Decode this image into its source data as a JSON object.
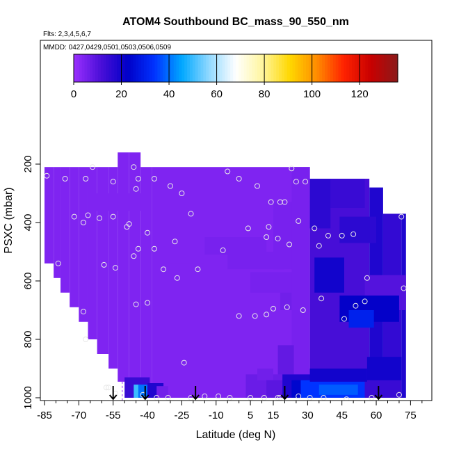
{
  "chart_data": {
    "type": "heatmap",
    "title": "ATOM4 Southbound BC_mass_90_550_nm",
    "flights_label": "Flts: 2,3,4,5,6,7",
    "dates_label": "MMDD: 0427,0429,0501,0503,0506,0509",
    "xlabel": "Latitude (deg N)",
    "ylabel": "PSXC (mbar)",
    "x_ticks": [
      -85,
      -70,
      -55,
      -40,
      -25,
      -10,
      5,
      15,
      30,
      45,
      60,
      75
    ],
    "y_ticks": [
      200,
      400,
      600,
      800,
      1000
    ],
    "xlim": [
      -85,
      84
    ],
    "ylim": [
      1000,
      0
    ],
    "y_reversed": true,
    "colorbar": {
      "range": [
        0,
        136
      ],
      "ticks": [
        0,
        20,
        40,
        60,
        80,
        100,
        120
      ],
      "colors": [
        "#9b30ff",
        "#4b0fd8",
        "#0000c8",
        "#0033ff",
        "#00a8ff",
        "#8fd8ff",
        "#ffffff",
        "#fff59d",
        "#ffd800",
        "#ff8c00",
        "#ff2200",
        "#c80000",
        "#8b1a1a"
      ],
      "orientation": "horizontal",
      "placement": "top"
    },
    "background_value": 4,
    "columns": [
      {
        "lat_range": [
          -85,
          -81
        ],
        "p_range": [
          210,
          540
        ],
        "value": 4
      },
      {
        "lat_range": [
          -81,
          -78
        ],
        "p_range": [
          210,
          590
        ],
        "value": 4
      },
      {
        "lat_range": [
          -78,
          -74
        ],
        "p_range": [
          210,
          640
        ],
        "value": 4
      },
      {
        "lat_range": [
          -74,
          -70
        ],
        "p_range": [
          210,
          690
        ],
        "value": 4
      },
      {
        "lat_range": [
          -70,
          -66
        ],
        "p_range": [
          210,
          740
        ],
        "value": 4
      },
      {
        "lat_range": [
          -66,
          -62
        ],
        "p_range": [
          210,
          800
        ],
        "value": 4
      },
      {
        "lat_range": [
          -62,
          -57
        ],
        "p_range": [
          210,
          850
        ],
        "value": 4
      },
      {
        "lat_range": [
          -57,
          -53
        ],
        "p_range": [
          210,
          900
        ],
        "value": 4
      },
      {
        "lat_range": [
          -53,
          -48
        ],
        "p_range": [
          160,
          945
        ],
        "value": 4
      },
      {
        "lat_range": [
          -48,
          -43
        ],
        "p_range": [
          160,
          1000
        ],
        "value": 4
      },
      {
        "lat_range": [
          -43,
          -38
        ],
        "p_range": [
          210,
          1000
        ],
        "value": 4
      },
      {
        "lat_range": [
          -38,
          28
        ],
        "p_range": [
          210,
          1000
        ],
        "value": 4
      },
      {
        "lat_range": [
          28,
          31
        ],
        "p_range": [
          210,
          1000
        ],
        "value": 5
      },
      {
        "lat_range": [
          31,
          57
        ],
        "p_range": [
          250,
          1000
        ],
        "value": 12
      },
      {
        "lat_range": [
          57,
          63
        ],
        "p_range": [
          280,
          1000
        ],
        "value": 18
      },
      {
        "lat_range": [
          63,
          71
        ],
        "p_range": [
          370,
          1000
        ],
        "value": 15
      },
      {
        "lat_range": [
          71,
          73
        ],
        "p_range": [
          370,
          1000
        ],
        "value": 18
      }
    ],
    "patches": [
      {
        "lat_range": [
          -50,
          -39
        ],
        "p_range": [
          930,
          1000
        ],
        "value": 14
      },
      {
        "lat_range": [
          -46,
          -43
        ],
        "p_range": [
          955,
          1000
        ],
        "value": 50
      },
      {
        "lat_range": [
          -44,
          -40
        ],
        "p_range": [
          955,
          1000
        ],
        "value": 40
      },
      {
        "lat_range": [
          -40,
          -33
        ],
        "p_range": [
          950,
          1000
        ],
        "value": 18
      },
      {
        "lat_range": [
          -36,
          -31
        ],
        "p_range": [
          960,
          1000
        ],
        "value": 6
      },
      {
        "lat_range": [
          3,
          28
        ],
        "p_range": [
          920,
          1000
        ],
        "value": 7
      },
      {
        "lat_range": [
          8,
          15
        ],
        "p_range": [
          900,
          940
        ],
        "value": 6
      },
      {
        "lat_range": [
          12,
          22
        ],
        "p_range": [
          940,
          1000
        ],
        "value": 9
      },
      {
        "lat_range": [
          -15,
          12
        ],
        "p_range": [
          450,
          510
        ],
        "value": 5
      },
      {
        "lat_range": [
          -5,
          20
        ],
        "p_range": [
          500,
          560
        ],
        "value": 5
      },
      {
        "lat_range": [
          5,
          30
        ],
        "p_range": [
          570,
          640
        ],
        "value": 5
      },
      {
        "lat_range": [
          -30,
          -15
        ],
        "p_range": [
          540,
          580
        ],
        "value": 4
      },
      {
        "lat_range": [
          -65,
          -40
        ],
        "p_range": [
          300,
          360
        ],
        "value": 4
      },
      {
        "lat_range": [
          15,
          23
        ],
        "p_range": [
          330,
          560
        ],
        "value": 5
      },
      {
        "lat_range": [
          18,
          27
        ],
        "p_range": [
          640,
          700
        ],
        "value": 6
      },
      {
        "lat_range": [
          23,
          31
        ],
        "p_range": [
          210,
          1000
        ],
        "value": 5
      },
      {
        "lat_range": [
          17,
          24
        ],
        "p_range": [
          820,
          920
        ],
        "value": 8
      },
      {
        "lat_range": [
          31,
          40
        ],
        "p_range": [
          250,
          420
        ],
        "value": 16
      },
      {
        "lat_range": [
          40,
          55
        ],
        "p_range": [
          250,
          350
        ],
        "value": 14
      },
      {
        "lat_range": [
          44,
          60
        ],
        "p_range": [
          380,
          470
        ],
        "value": 16
      },
      {
        "lat_range": [
          33,
          46
        ],
        "p_range": [
          520,
          640
        ],
        "value": 20
      },
      {
        "lat_range": [
          55,
          73
        ],
        "p_range": [
          580,
          700
        ],
        "value": 10
      },
      {
        "lat_range": [
          44,
          70
        ],
        "p_range": [
          650,
          740
        ],
        "value": 22
      },
      {
        "lat_range": [
          48,
          59
        ],
        "p_range": [
          700,
          760
        ],
        "value": 30
      },
      {
        "lat_range": [
          19,
          35
        ],
        "p_range": [
          920,
          1000
        ],
        "value": 18
      },
      {
        "lat_range": [
          23,
          33
        ],
        "p_range": [
          940,
          1000
        ],
        "value": 24
      },
      {
        "lat_range": [
          27,
          55
        ],
        "p_range": [
          940,
          1000
        ],
        "value": 34
      },
      {
        "lat_range": [
          35,
          52
        ],
        "p_range": [
          955,
          990
        ],
        "value": 38
      },
      {
        "lat_range": [
          55,
          71
        ],
        "p_range": [
          940,
          1000
        ],
        "value": 14
      },
      {
        "lat_range": [
          31,
          56
        ],
        "p_range": [
          900,
          945
        ],
        "value": 20
      },
      {
        "lat_range": [
          56,
          71
        ],
        "p_range": [
          860,
          940
        ],
        "value": 20
      }
    ],
    "markers": [
      {
        "lat": -55,
        "p": 1000
      },
      {
        "lat": -41,
        "p": 1000
      },
      {
        "lat": -19,
        "p": 1000
      },
      {
        "lat": 20,
        "p": 1000
      },
      {
        "lat": 61,
        "p": 1000
      }
    ],
    "dashed_line_lat": -51,
    "points": [
      [
        -84,
        240
      ],
      [
        -76,
        250
      ],
      [
        -67,
        250
      ],
      [
        -64,
        210
      ],
      [
        -55,
        260
      ],
      [
        -46,
        210
      ],
      [
        -45,
        285
      ],
      [
        -44,
        250
      ],
      [
        -37,
        250
      ],
      [
        -30,
        275
      ],
      [
        -25,
        300
      ],
      [
        -5,
        225
      ],
      [
        0,
        250
      ],
      [
        8,
        275
      ],
      [
        14,
        330
      ],
      [
        18,
        330
      ],
      [
        20,
        330
      ],
      [
        23,
        215
      ],
      [
        25,
        260
      ],
      [
        29,
        260
      ],
      [
        -72,
        380
      ],
      [
        -66,
        375
      ],
      [
        -68,
        400
      ],
      [
        -61,
        385
      ],
      [
        -55,
        380
      ],
      [
        -49,
        415
      ],
      [
        -48,
        405
      ],
      [
        -40,
        435
      ],
      [
        -28,
        465
      ],
      [
        -21,
        370
      ],
      [
        4,
        420
      ],
      [
        12,
        450
      ],
      [
        17,
        455
      ],
      [
        22,
        475
      ],
      [
        26,
        395
      ],
      [
        33,
        420
      ],
      [
        35,
        480
      ],
      [
        39,
        445
      ],
      [
        45,
        445
      ],
      [
        50,
        440
      ],
      [
        71,
        380
      ],
      [
        -79,
        540
      ],
      [
        -59,
        545
      ],
      [
        -54,
        555
      ],
      [
        -44,
        490
      ],
      [
        -46,
        515
      ],
      [
        -37,
        490
      ],
      [
        -33,
        560
      ],
      [
        -27,
        590
      ],
      [
        -18,
        560
      ],
      [
        -7,
        495
      ],
      [
        13,
        415
      ],
      [
        -68,
        705
      ],
      [
        -67,
        800
      ],
      [
        -58,
        965
      ],
      [
        -57,
        965
      ],
      [
        -45,
        680
      ],
      [
        -40,
        675
      ],
      [
        -24,
        880
      ],
      [
        0,
        720
      ],
      [
        7,
        720
      ],
      [
        12,
        715
      ],
      [
        15,
        695
      ],
      [
        21,
        690
      ],
      [
        28,
        700
      ],
      [
        36,
        660
      ],
      [
        46,
        730
      ],
      [
        51,
        685
      ],
      [
        55,
        670
      ],
      [
        56,
        590
      ],
      [
        72,
        625
      ],
      [
        -54,
        985
      ],
      [
        -42,
        990
      ],
      [
        -36,
        1000
      ],
      [
        -31,
        1000
      ],
      [
        -21,
        1000
      ],
      [
        -15,
        995
      ],
      [
        -9,
        995
      ],
      [
        -4,
        1000
      ],
      [
        5,
        1000
      ],
      [
        11,
        1000
      ],
      [
        17,
        1000
      ],
      [
        18,
        1000
      ],
      [
        26,
        995
      ],
      [
        31,
        1000
      ],
      [
        37,
        1000
      ],
      [
        47,
        1005
      ],
      [
        58,
        1000
      ],
      [
        70,
        990
      ]
    ]
  }
}
